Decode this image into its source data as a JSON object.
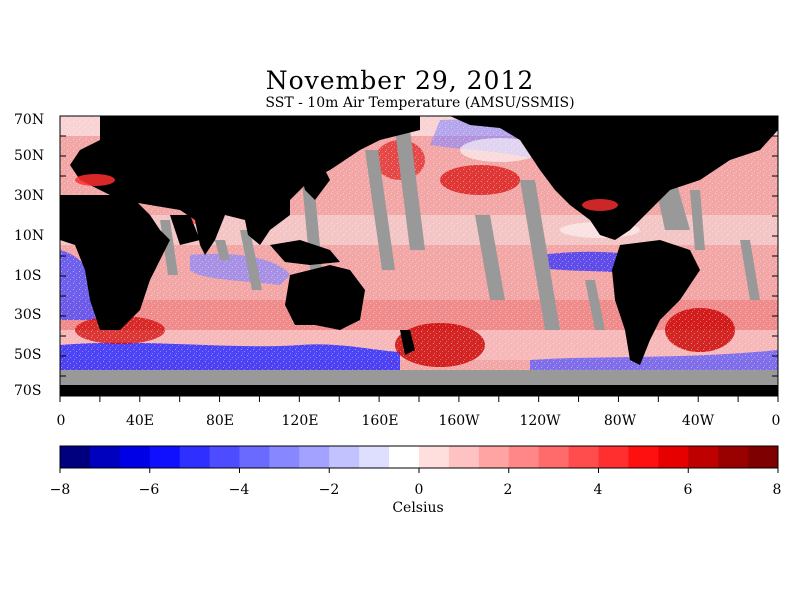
{
  "title": "November 29, 2012",
  "subtitle": "SST - 10m Air Temperature (AMSU/SSMIS)",
  "map": {
    "latitude_labels": [
      "70N",
      "50N",
      "30N",
      "10N",
      "10S",
      "30S",
      "50S",
      "70S"
    ],
    "longitude_labels": [
      "0",
      "40E",
      "80E",
      "120E",
      "160E",
      "160W",
      "120W",
      "80W",
      "40W",
      "0"
    ],
    "land_color": "#000000",
    "missing_data_color": "#999999"
  },
  "colorbar": {
    "tick_labels": [
      "−8",
      "−6",
      "−4",
      "−2",
      "0",
      "2",
      "4",
      "6",
      "8"
    ],
    "range": [
      -8,
      8
    ],
    "unit": "Celsius",
    "colors": [
      "#00007f",
      "#0000bf",
      "#0000e6",
      "#1010ff",
      "#2f2fff",
      "#4d4dff",
      "#6a6aff",
      "#8787ff",
      "#a3a3ff",
      "#c2c2ff",
      "#dedeff",
      "#ffffff",
      "#ffdede",
      "#ffc2c2",
      "#ffa3a3",
      "#ff8787",
      "#ff6a6a",
      "#ff4d4d",
      "#ff2f2f",
      "#ff1010",
      "#e60000",
      "#bf0000",
      "#990000",
      "#7f0000"
    ]
  }
}
